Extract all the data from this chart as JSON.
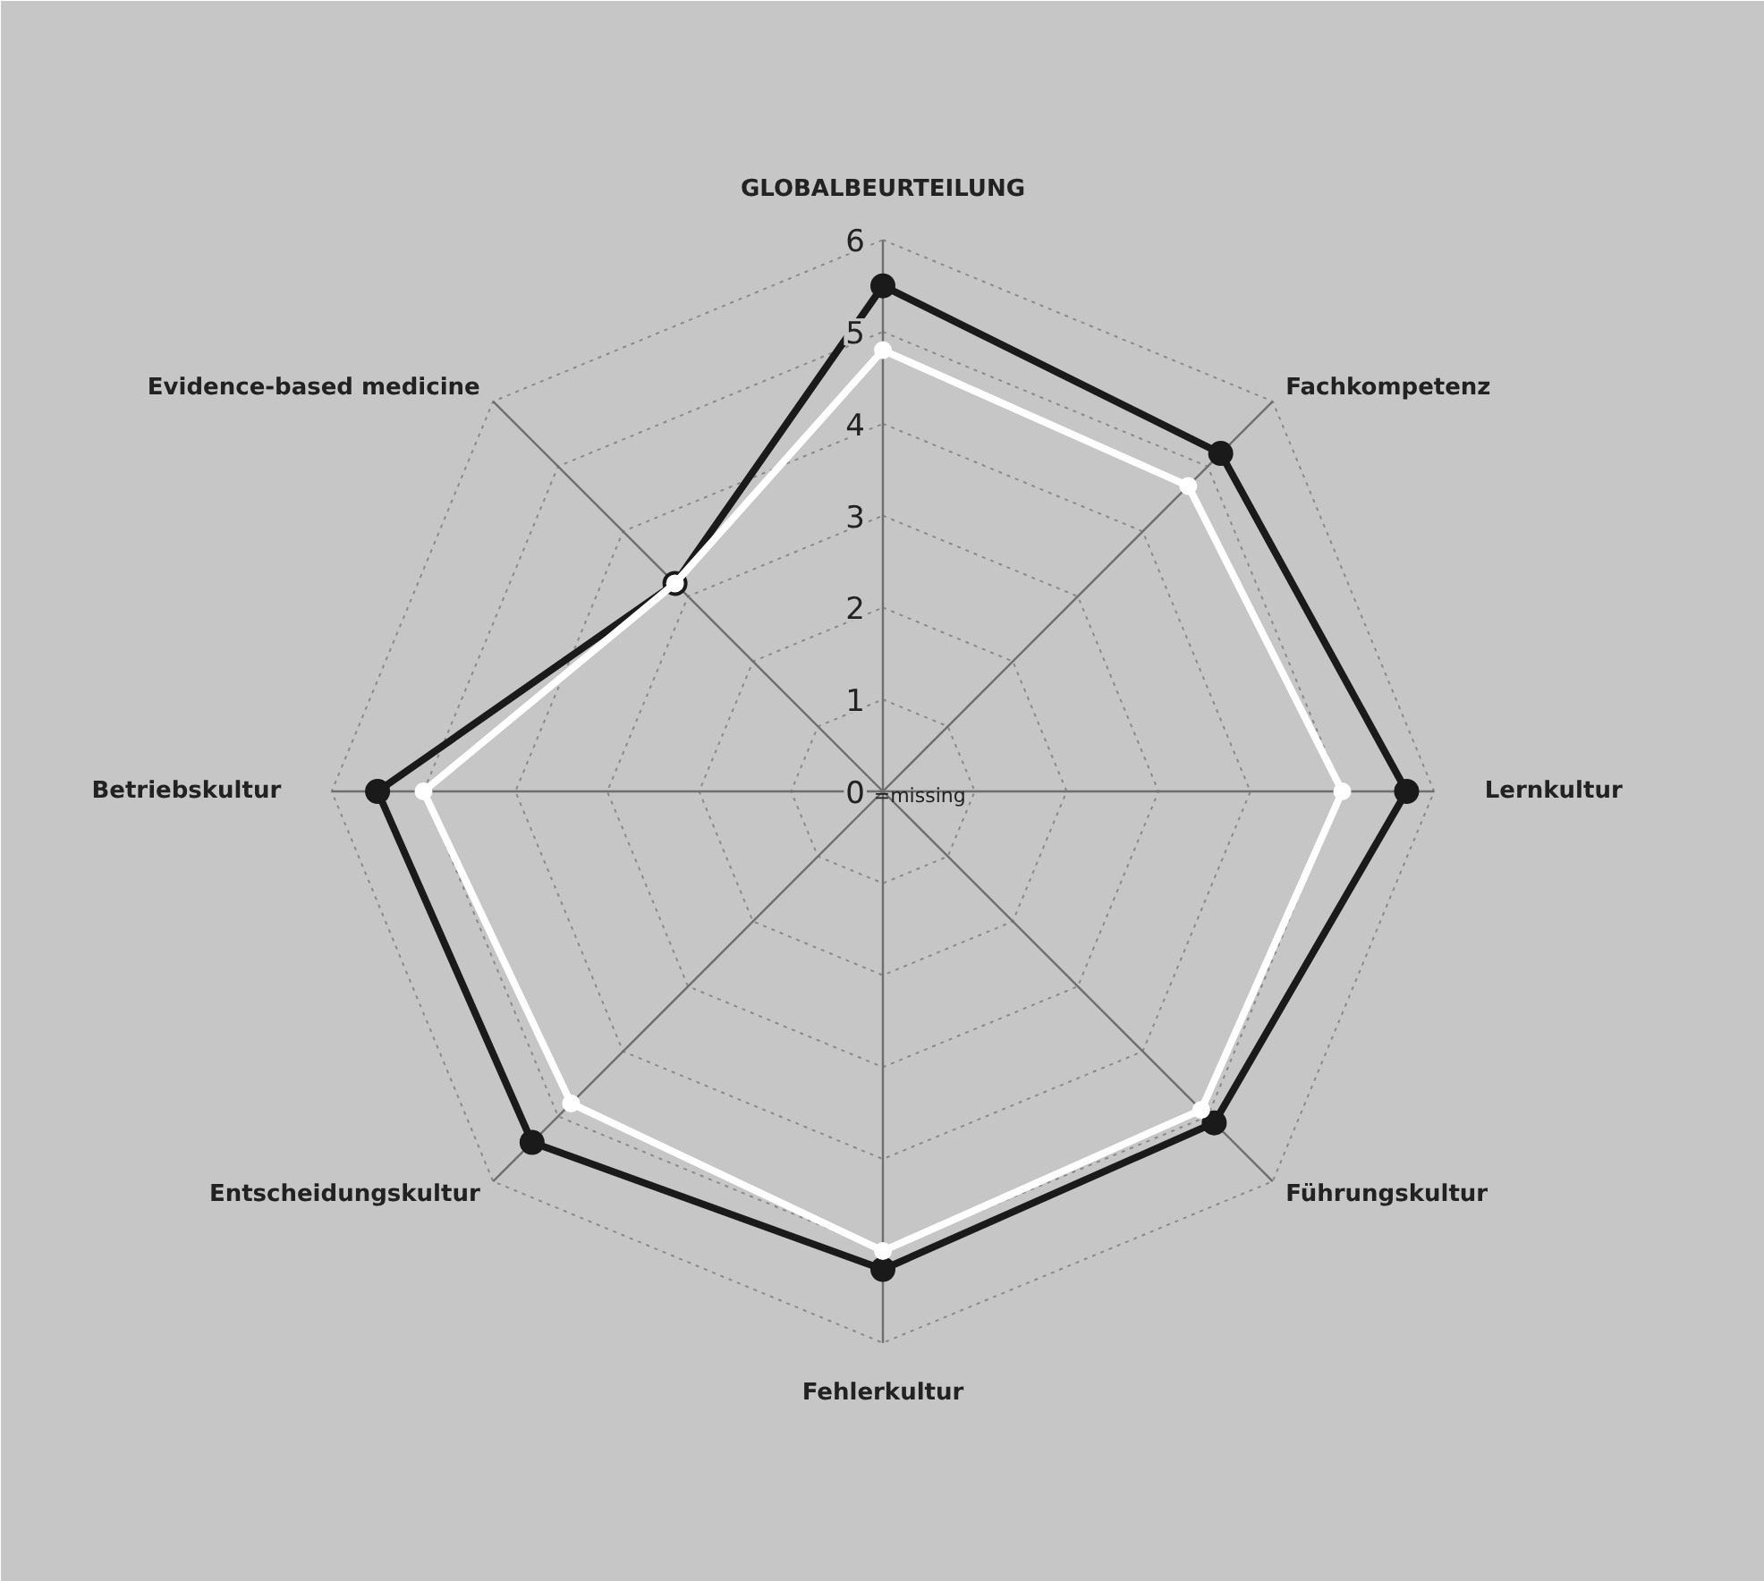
{
  "chart_data": {
    "type": "radar",
    "categories": [
      "GLOBALBEURTEILUNG",
      "Fachkompetenz",
      "Lernkultur",
      "Führungskultur",
      "Fehlerkultur",
      "Entscheidungskultur",
      "Betriebskultur",
      "Evidence-based medicine"
    ],
    "series": [
      {
        "color": "#1a1a1a",
        "values": [
          5.5,
          5.2,
          5.7,
          5.1,
          5.2,
          5.4,
          5.5,
          3.2
        ]
      },
      {
        "color": "#ffffff",
        "values": [
          4.8,
          4.7,
          5.0,
          4.9,
          5.0,
          4.8,
          5.0,
          3.2
        ]
      }
    ],
    "ylim": [
      0,
      6
    ],
    "yticks": [
      {
        "value": 0,
        "label": "0"
      },
      1,
      2,
      3,
      4,
      5,
      6
    ],
    "annotations": [
      "=missing"
    ],
    "grid": true,
    "marker": "circle",
    "line_style": "solid"
  }
}
